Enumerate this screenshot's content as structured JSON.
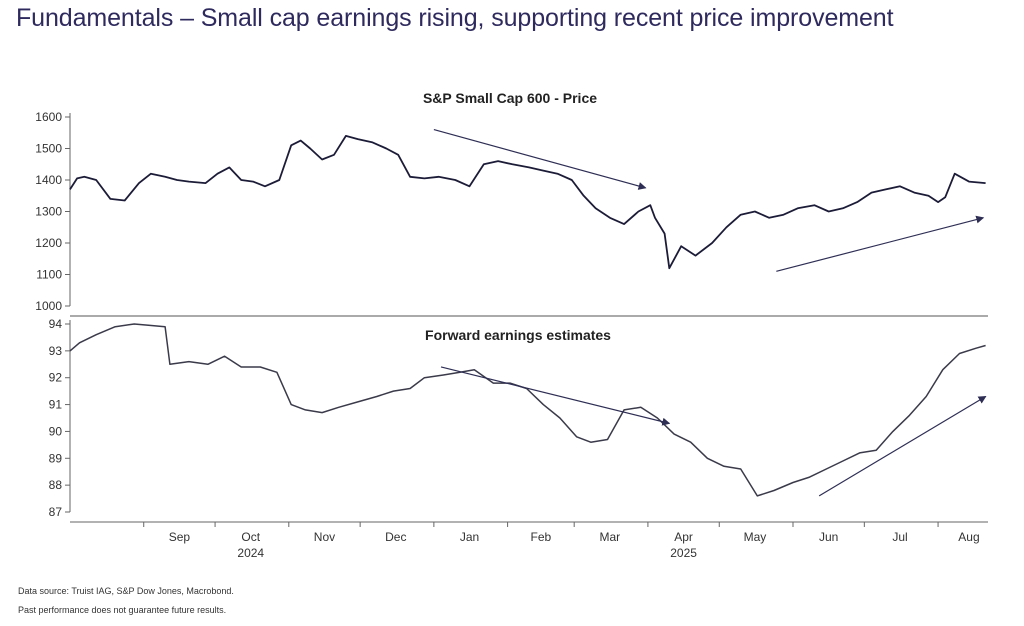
{
  "page": {
    "title": "Fundamentals – Small cap earnings rising, supporting recent price improvement",
    "footnotes": [
      "Data source: Truist IAG, S&P Dow Jones, Macrobond.",
      "Past performance does not guarantee future results."
    ]
  },
  "colors": {
    "title": "#2e2a5e",
    "price_line": "#1c1c38",
    "earnings_line": "#3a3a4a",
    "axis": "#666666",
    "arrow": "#2e2e55"
  },
  "chart_data": [
    {
      "type": "line",
      "title": "S&P Small Cap 600 - Price",
      "ylim": [
        1000,
        1600
      ],
      "yticks": [
        1000,
        1100,
        1200,
        1300,
        1400,
        1500,
        1600
      ],
      "ytick_labels": [
        "1000",
        "1100",
        "1200",
        "1300",
        "1400",
        "1500",
        "1600"
      ],
      "x_range": [
        "2024-08-01",
        "2025-08-22"
      ],
      "grid": false,
      "trend_arrows": [
        {
          "from": [
            "2025-01-01",
            1560
          ],
          "to": [
            "2025-03-31",
            1375
          ],
          "direction": "down"
        },
        {
          "from": [
            "2025-05-25",
            1110
          ],
          "to": [
            "2025-08-20",
            1280
          ],
          "direction": "up"
        }
      ],
      "series": [
        {
          "x": [
            "2024-08-01",
            "2024-08-04",
            "2024-08-07",
            "2024-08-12",
            "2024-08-18",
            "2024-08-24",
            "2024-08-30",
            "2024-09-04",
            "2024-09-10",
            "2024-09-15",
            "2024-09-20",
            "2024-09-27",
            "2024-10-02",
            "2024-10-07",
            "2024-10-12",
            "2024-10-17",
            "2024-10-22",
            "2024-10-28",
            "2024-11-02",
            "2024-11-06",
            "2024-11-10",
            "2024-11-15",
            "2024-11-20",
            "2024-11-25",
            "2024-11-30",
            "2024-12-06",
            "2024-12-12",
            "2024-12-17",
            "2024-12-22",
            "2024-12-28",
            "2025-01-03",
            "2025-01-10",
            "2025-01-16",
            "2025-01-22",
            "2025-01-28",
            "2025-02-03",
            "2025-02-10",
            "2025-02-16",
            "2025-02-22",
            "2025-02-28",
            "2025-03-05",
            "2025-03-10",
            "2025-03-16",
            "2025-03-22",
            "2025-03-28",
            "2025-04-02",
            "2025-04-04",
            "2025-04-08",
            "2025-04-10",
            "2025-04-15",
            "2025-04-21",
            "2025-04-28",
            "2025-05-04",
            "2025-05-10",
            "2025-05-16",
            "2025-05-22",
            "2025-05-28",
            "2025-06-03",
            "2025-06-10",
            "2025-06-16",
            "2025-06-22",
            "2025-06-28",
            "2025-07-04",
            "2025-07-10",
            "2025-07-16",
            "2025-07-22",
            "2025-07-28",
            "2025-08-01",
            "2025-08-04",
            "2025-08-08",
            "2025-08-14",
            "2025-08-21"
          ],
          "values": [
            1370,
            1405,
            1410,
            1400,
            1340,
            1335,
            1390,
            1420,
            1410,
            1400,
            1395,
            1390,
            1420,
            1440,
            1400,
            1395,
            1380,
            1400,
            1510,
            1525,
            1500,
            1465,
            1480,
            1540,
            1530,
            1520,
            1500,
            1480,
            1410,
            1405,
            1410,
            1400,
            1380,
            1450,
            1460,
            1450,
            1440,
            1430,
            1420,
            1400,
            1350,
            1310,
            1280,
            1260,
            1300,
            1320,
            1280,
            1230,
            1120,
            1190,
            1160,
            1200,
            1250,
            1290,
            1300,
            1280,
            1290,
            1310,
            1320,
            1300,
            1310,
            1330,
            1360,
            1370,
            1380,
            1360,
            1350,
            1330,
            1345,
            1420,
            1395,
            1390
          ]
        }
      ]
    },
    {
      "type": "line",
      "title": "Forward earnings estimates",
      "ylim": [
        87,
        94
      ],
      "yticks": [
        87,
        88,
        89,
        90,
        91,
        92,
        93,
        94
      ],
      "ytick_labels": [
        "87",
        "88",
        "89",
        "90",
        "91",
        "92",
        "93",
        "94"
      ],
      "xtick_labels": [
        "Sep",
        "Oct",
        "Nov",
        "Dec",
        "Jan",
        "Feb",
        "Mar",
        "Apr",
        "May",
        "Jun",
        "Jul",
        "Aug"
      ],
      "year_labels": [
        "2024",
        "2025"
      ],
      "x_range": [
        "2024-08-01",
        "2025-08-22"
      ],
      "grid": false,
      "trend_arrows": [
        {
          "from": [
            "2025-01-04",
            92.4
          ],
          "to": [
            "2025-04-10",
            90.3
          ],
          "direction": "down"
        },
        {
          "from": [
            "2025-06-12",
            87.6
          ],
          "to": [
            "2025-08-21",
            91.3
          ],
          "direction": "up"
        }
      ],
      "series": [
        {
          "x": [
            "2024-08-01",
            "2024-08-05",
            "2024-08-12",
            "2024-08-20",
            "2024-08-28",
            "2024-09-03",
            "2024-09-10",
            "2024-09-12",
            "2024-09-20",
            "2024-09-28",
            "2024-10-05",
            "2024-10-12",
            "2024-10-20",
            "2024-10-27",
            "2024-11-02",
            "2024-11-08",
            "2024-11-15",
            "2024-11-22",
            "2024-11-30",
            "2024-12-08",
            "2024-12-15",
            "2024-12-22",
            "2024-12-28",
            "2025-01-05",
            "2025-01-12",
            "2025-01-18",
            "2025-01-26",
            "2025-02-02",
            "2025-02-09",
            "2025-02-16",
            "2025-02-23",
            "2025-03-02",
            "2025-03-08",
            "2025-03-15",
            "2025-03-22",
            "2025-03-29",
            "2025-04-05",
            "2025-04-12",
            "2025-04-19",
            "2025-04-26",
            "2025-05-03",
            "2025-05-10",
            "2025-05-17",
            "2025-05-24",
            "2025-06-01",
            "2025-06-08",
            "2025-06-15",
            "2025-06-22",
            "2025-06-29",
            "2025-07-06",
            "2025-07-13",
            "2025-07-20",
            "2025-07-27",
            "2025-08-03",
            "2025-08-10",
            "2025-08-17",
            "2025-08-21"
          ],
          "values": [
            93.0,
            93.3,
            93.6,
            93.9,
            94.0,
            93.95,
            93.9,
            92.5,
            92.6,
            92.5,
            92.8,
            92.4,
            92.4,
            92.2,
            91.0,
            90.8,
            90.7,
            90.9,
            91.1,
            91.3,
            91.5,
            91.6,
            92.0,
            92.1,
            92.2,
            92.3,
            91.8,
            91.8,
            91.6,
            91.0,
            90.5,
            89.8,
            89.6,
            89.7,
            90.8,
            90.9,
            90.5,
            89.9,
            89.6,
            89.0,
            88.7,
            88.6,
            87.6,
            87.8,
            88.1,
            88.3,
            88.6,
            88.9,
            89.2,
            89.3,
            90.0,
            90.6,
            91.3,
            92.3,
            92.9,
            93.1,
            93.2
          ]
        }
      ]
    }
  ]
}
